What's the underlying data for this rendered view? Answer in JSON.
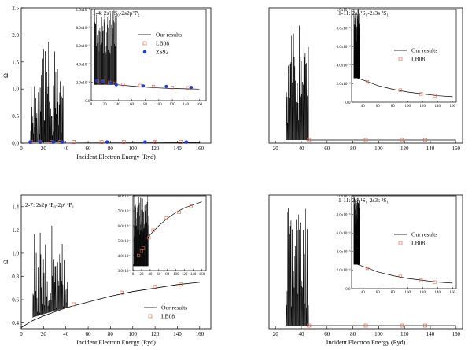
{
  "chart_data": [
    {
      "type": "line",
      "title": "1-4: 2s² ¹S₀-2s2p³P₂",
      "xlabel": "Incident Electron Energy (Ryd)",
      "ylabel": "Ω",
      "xlim": [
        0,
        170
      ],
      "ylim": [
        0,
        2.5
      ],
      "xticks": [
        "0",
        "20",
        "40",
        "60",
        "80",
        "100",
        "120",
        "140",
        "160"
      ],
      "yticks": [
        "0.0",
        "0.5",
        "1.0",
        "1.5",
        "2.0",
        "2.5"
      ],
      "series": [
        {
          "name": "Our results",
          "x": [
            40,
            60,
            80,
            100,
            120,
            140,
            160
          ],
          "y": [
            0.02,
            0.018,
            0.016,
            0.015,
            0.014,
            0.013,
            0.012
          ]
        },
        {
          "name": "LB08",
          "x": [
            9,
            17,
            27,
            35,
            47,
            72,
            92,
            120,
            143
          ],
          "y": [
            0.02,
            0.02,
            0.02,
            0.02,
            0.02,
            0.02,
            0.02,
            0.02,
            0.02
          ]
        },
        {
          "name": "ZS92",
          "x": [
            8,
            17,
            29,
            37,
            77,
            111,
            148
          ],
          "y": [
            0.02,
            0.02,
            0.02,
            0.02,
            0.02,
            0.02,
            0.02
          ]
        }
      ],
      "inset": {
        "xticks": [
          "0",
          "20",
          "40",
          "60",
          "80",
          "100",
          "120",
          "140",
          "160"
        ],
        "yticks": [
          "0.0",
          "2.0x10⁻²",
          "4.0x10⁻²",
          "6.0x10⁻²",
          "8.0x10⁻²",
          "1.0x10⁻¹"
        ],
        "xlim": [
          0,
          170
        ],
        "ylim": [
          0,
          0.1
        ],
        "line": {
          "x": [
            38,
            60,
            80,
            100,
            120,
            140,
            160
          ],
          "y": [
            0.0175,
            0.016,
            0.0148,
            0.014,
            0.0134,
            0.013,
            0.0127
          ]
        },
        "lb08": {
          "x": [
            9,
            17,
            27,
            35,
            47,
            72,
            92,
            120,
            143
          ],
          "y": [
            0.022,
            0.021,
            0.02,
            0.019,
            0.018,
            0.0165,
            0.0155,
            0.0145,
            0.014
          ]
        },
        "zs92": {
          "x": [
            8,
            17,
            29,
            37,
            77,
            111,
            148
          ],
          "y": [
            0.022,
            0.021,
            0.019,
            0.0175,
            0.0162,
            0.0156,
            0.0145
          ]
        }
      }
    },
    {
      "type": "line",
      "title": "1-11: 2s² ¹S₀-2s3s ³S₁",
      "xlabel": "",
      "ylabel": "",
      "xlim": [
        15,
        165
      ],
      "xticks": [
        "20",
        "40",
        "60",
        "80",
        "100",
        "120",
        "140",
        "160"
      ],
      "series": [
        {
          "name": "Our results",
          "x": [
            30,
            60,
            90,
            120,
            150
          ],
          "y": [
            0.0,
            0.0,
            0.0,
            0.0,
            0.0
          ]
        },
        {
          "name": "LB08",
          "x": [
            46,
            90,
            118,
            136
          ],
          "y": [
            0.0,
            0.0,
            0.0,
            0.0
          ]
        }
      ],
      "inset": {
        "yticks": [
          "0.0",
          "2.0x10⁻³",
          "4.0x10⁻³",
          "6.0x10⁻³",
          "8.0x10⁻³",
          "1.0x10⁻²"
        ],
        "xticks": [
          "40",
          "60",
          "80",
          "100",
          "120",
          "140",
          "160"
        ],
        "xlim": [
          25,
          165
        ],
        "ylim": [
          0,
          0.01
        ],
        "line": {
          "x": [
            33,
            40,
            50,
            60,
            80,
            100,
            120,
            140,
            160
          ],
          "y": [
            0.0026,
            0.0024,
            0.0021,
            0.0018,
            0.0014,
            0.0011,
            0.0009,
            0.0007,
            0.0006
          ]
        },
        "lb08": {
          "x": [
            46,
            90,
            118,
            136
          ],
          "y": [
            0.0022,
            0.0013,
            0.0009,
            0.0007
          ]
        }
      }
    },
    {
      "type": "line",
      "title": "2-7: 2s2p ³P₀-2p² ³P₁",
      "xlabel": "Incident Electron Energy (Ryd)",
      "ylabel": "Ω",
      "xlim": [
        0,
        170
      ],
      "ylim": [
        0.35,
        1.5
      ],
      "xticks": [
        "0",
        "20",
        "40",
        "60",
        "80",
        "100",
        "120",
        "140",
        "160"
      ],
      "yticks": [
        "0.4",
        "0.6",
        "0.8",
        "1.0",
        "1.2",
        "1.4"
      ],
      "series": [
        {
          "name": "Our results",
          "x": [
            0,
            10,
            20,
            40,
            60,
            80,
            100,
            120,
            140,
            160
          ],
          "y": [
            0.36,
            0.42,
            0.46,
            0.53,
            0.58,
            0.63,
            0.67,
            0.7,
            0.73,
            0.75
          ]
        },
        {
          "name": "LB08",
          "x": [
            47,
            90,
            120,
            143
          ],
          "y": [
            0.56,
            0.66,
            0.71,
            0.73
          ]
        }
      ],
      "inset": {
        "yticks": [
          "3.0x10⁻¹",
          "4.0x10⁻¹",
          "5.0x10⁻¹",
          "6.0x10⁻¹",
          "7.0x10⁻¹",
          "8.0x10⁻¹"
        ],
        "xticks": [
          "0",
          "20",
          "40",
          "60",
          "80",
          "100",
          "120",
          "140",
          "160"
        ],
        "xlim": [
          0,
          170
        ],
        "ylim": [
          0.3,
          0.8
        ],
        "line": {
          "x": [
            0,
            10,
            20,
            30,
            40,
            60,
            80,
            100,
            120,
            140,
            160
          ],
          "y": [
            0.33,
            0.38,
            0.43,
            0.5,
            0.54,
            0.6,
            0.65,
            0.69,
            0.72,
            0.74,
            0.76
          ]
        },
        "lb08": {
          "x": [
            13,
            20,
            24,
            37,
            47,
            78,
            107,
            135
          ],
          "y": [
            0.4,
            0.43,
            0.45,
            0.52,
            0.57,
            0.65,
            0.69,
            0.73
          ]
        }
      }
    },
    {
      "type": "line",
      "title": "1-11: 2s² ¹S₀-2s3s ³S₁",
      "xlabel": "Incident Electron Energy (Ryd)",
      "ylabel": "",
      "xlim": [
        15,
        165
      ],
      "xticks": [
        "20",
        "40",
        "60",
        "80",
        "100",
        "120",
        "140",
        "160"
      ],
      "series": [
        {
          "name": "Our results",
          "x": [
            30,
            60,
            90,
            120,
            150
          ],
          "y": [
            0.0,
            0.0,
            0.0,
            0.0,
            0.0
          ]
        },
        {
          "name": "LB08",
          "x": [
            46,
            90,
            118,
            136
          ],
          "y": [
            0.0,
            0.0,
            0.0,
            0.0
          ]
        }
      ],
      "inset": {
        "yticks": [
          "0.0",
          "2.0x10⁻³",
          "4.0x10⁻³",
          "6.0x10⁻³",
          "8.0x10⁻³",
          "1.0x10⁻²"
        ],
        "xticks": [
          "40",
          "60",
          "80",
          "100",
          "120",
          "140",
          "160"
        ],
        "xlim": [
          25,
          165
        ],
        "ylim": [
          0,
          0.01
        ],
        "line": {
          "x": [
            33,
            40,
            50,
            60,
            80,
            100,
            120,
            140,
            160
          ],
          "y": [
            0.0026,
            0.0024,
            0.0021,
            0.0018,
            0.0014,
            0.0011,
            0.0009,
            0.0007,
            0.0006
          ]
        },
        "lb08": {
          "x": [
            46,
            90,
            118,
            136
          ],
          "y": [
            0.0022,
            0.0013,
            0.0009,
            0.0007
          ]
        }
      }
    }
  ],
  "colors": {
    "line": "#000000",
    "lb08": "#e0684e",
    "zs92": "#1f3bd8"
  }
}
